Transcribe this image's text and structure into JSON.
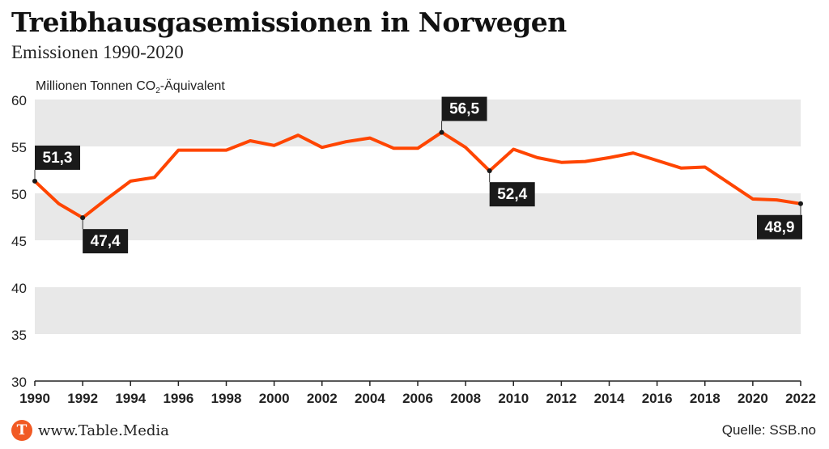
{
  "header": {
    "title": "Treibhausgasemissionen in Norwegen",
    "subtitle": "Emissionen 1990-2020"
  },
  "axis": {
    "y_unit_main": "Millionen Tonnen CO",
    "y_unit_sub": "2",
    "y_unit_rest": "-Äquivalent"
  },
  "footer": {
    "logo_letter": "T",
    "site": "www.Table.Media",
    "source": "Quelle: SSB.no"
  },
  "colors": {
    "line": "#ff4500",
    "band": "#e8e8e8",
    "label_bg": "#1a1a1a",
    "logo": "#f15a24"
  },
  "chart_data": {
    "type": "line",
    "title": "Treibhausgasemissionen in Norwegen",
    "subtitle": "Emissionen 1990-2020",
    "ylabel": "Millionen Tonnen CO2-Äquivalent",
    "ylim": [
      30,
      60
    ],
    "xlim": [
      1990,
      2022
    ],
    "yticks": [
      30,
      35,
      40,
      45,
      50,
      55,
      60
    ],
    "xticks": [
      1990,
      1992,
      1994,
      1996,
      1998,
      2000,
      2002,
      2004,
      2006,
      2008,
      2010,
      2012,
      2014,
      2016,
      2018,
      2020,
      2022
    ],
    "grid": "alternating horizontal bands",
    "series": [
      {
        "x": [
          1990,
          1991,
          1992,
          1993,
          1994,
          1995,
          1996,
          1997,
          1998,
          1999,
          2000,
          2001,
          2002,
          2003,
          2004,
          2005,
          2006,
          2007,
          2008,
          2009,
          2010,
          2011,
          2012,
          2013,
          2014,
          2015,
          2016,
          2017,
          2018,
          2019,
          2020,
          2021,
          2022
        ],
        "values": [
          51.3,
          48.9,
          47.4,
          49.4,
          51.3,
          51.7,
          54.6,
          54.6,
          54.6,
          55.6,
          55.1,
          56.2,
          54.9,
          55.5,
          55.9,
          54.8,
          54.8,
          56.5,
          54.9,
          52.4,
          54.7,
          53.8,
          53.3,
          53.4,
          53.8,
          54.3,
          53.5,
          52.7,
          52.8,
          51.1,
          49.4,
          49.3,
          48.9
        ]
      }
    ],
    "annotations": [
      {
        "x": 1990,
        "value": 51.3,
        "text": "51,3",
        "position": "above"
      },
      {
        "x": 1992,
        "value": 47.4,
        "text": "47,4",
        "position": "below"
      },
      {
        "x": 2007,
        "value": 56.5,
        "text": "56,5",
        "position": "above"
      },
      {
        "x": 2009,
        "value": 52.4,
        "text": "52,4",
        "position": "below"
      },
      {
        "x": 2022,
        "value": 48.9,
        "text": "48,9",
        "position": "below"
      }
    ]
  }
}
